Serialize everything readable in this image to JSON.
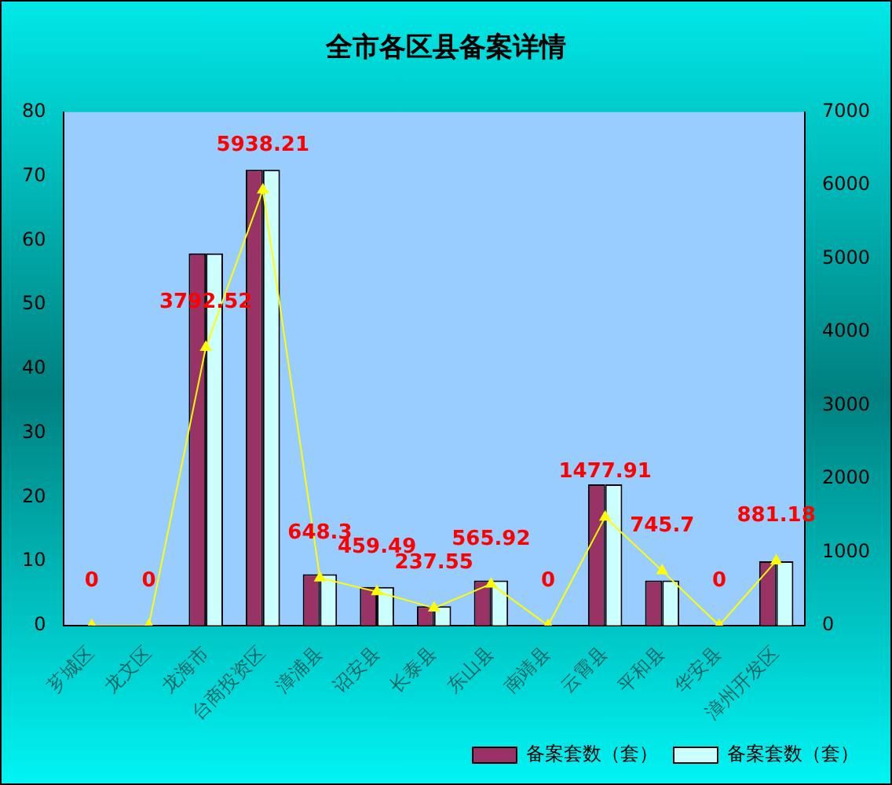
{
  "chart_data": {
    "type": "bar",
    "title": "全市各区县备案详情",
    "categories": [
      "芗城区",
      "龙文区",
      "龙海市",
      "台商投资区",
      "漳浦县",
      "诏安县",
      "长泰县",
      "东山县",
      "南靖县",
      "云霄县",
      "平和县",
      "华安县",
      "漳州开发区"
    ],
    "series": [
      {
        "name": "备案套数（套）",
        "color": "#993366",
        "values": [
          0,
          0,
          58,
          71,
          8,
          6,
          3,
          7,
          0,
          22,
          7,
          0,
          10
        ]
      },
      {
        "name": "备案套数（套）",
        "color": "#ccffff",
        "values": [
          0,
          0,
          58,
          71,
          8,
          6,
          3,
          7,
          0,
          22,
          7,
          0,
          10
        ]
      },
      {
        "type": "line",
        "axis": "y2",
        "color": "#ffff00",
        "marker": "triangle",
        "values": [
          0,
          0,
          3792.52,
          5938.21,
          648.3,
          459.49,
          237.55,
          565.92,
          0,
          1477.91,
          745.7,
          0,
          881.18
        ],
        "value_labels": [
          "0",
          "0",
          "3792.52",
          "5938.21",
          "648.3",
          "459.49",
          "237.55",
          "565.92",
          "0",
          "1477.91",
          "745.7",
          "0",
          "881.18"
        ]
      }
    ],
    "ylim": [
      0,
      80
    ],
    "yticks": [
      0,
      10,
      20,
      30,
      40,
      50,
      60,
      70,
      80
    ],
    "y2lim": [
      0,
      7000
    ],
    "y2ticks": [
      0,
      1000,
      2000,
      3000,
      4000,
      5000,
      6000,
      7000
    ],
    "grid": false,
    "legend": "bottom right"
  }
}
